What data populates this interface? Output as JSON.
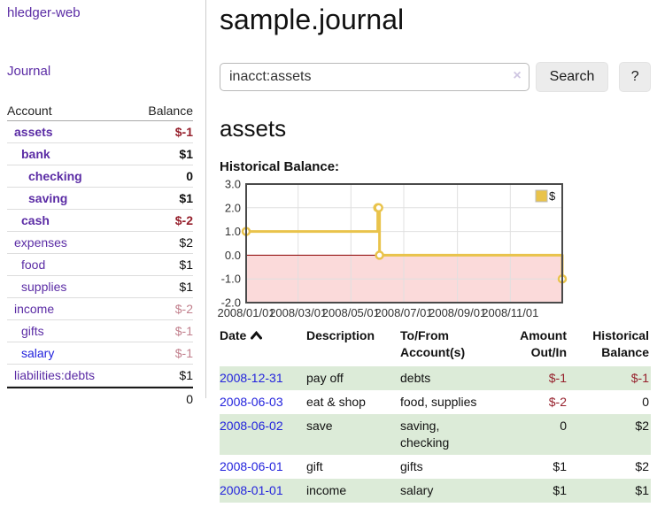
{
  "app": {
    "brand": "hledger-web"
  },
  "palette": {
    "purple_link": "#5b2ca5",
    "blue_link": "#2323dd",
    "negative": "#96202c",
    "negative_soft": "#c2808d",
    "row_stripe_green": "#dcebd8",
    "chart_line_gold": "#e9c34b",
    "chart_zero_line": "#8b0000",
    "chart_negative_region": "#fbdada"
  },
  "icons": {
    "sort": "chevron-up",
    "clear": "×"
  },
  "sidebar": {
    "journal_link": "Journal",
    "accounts": {
      "header": {
        "account": "Account",
        "balance": "Balance"
      },
      "rows": [
        {
          "name": "assets",
          "balance": "$-1"
        },
        {
          "name": "bank",
          "balance": "$1"
        },
        {
          "name": "checking",
          "balance": "0"
        },
        {
          "name": "saving",
          "balance": "$1"
        },
        {
          "name": "cash",
          "balance": "$-2"
        },
        {
          "name": "expenses",
          "balance": "$2"
        },
        {
          "name": "food",
          "balance": "$1"
        },
        {
          "name": "supplies",
          "balance": "$1"
        },
        {
          "name": "income",
          "balance": "$-2"
        },
        {
          "name": "gifts",
          "balance": "$-1"
        },
        {
          "name": "salary",
          "balance": "$-1"
        },
        {
          "name": "liabilities:debts",
          "balance": "$1"
        }
      ],
      "total": "0"
    }
  },
  "main": {
    "title": "sample.journal",
    "search": {
      "value": "inacct:assets",
      "button_label": "Search",
      "help_label": "?"
    },
    "account_heading": "assets",
    "chart_label": "Historical Balance:"
  },
  "chart_data": {
    "type": "line",
    "title": "Historical Balance",
    "step": true,
    "series": [
      {
        "name": "$",
        "color": "#e9c34b",
        "points": [
          [
            "2008/01/01",
            1
          ],
          [
            "2008/06/01",
            2
          ],
          [
            "2008/06/02",
            2
          ],
          [
            "2008/06/03",
            0
          ],
          [
            "2008/12/31",
            -1
          ]
        ]
      }
    ],
    "xlim": [
      "2008/01/01",
      "2008/12/31"
    ],
    "ylim": [
      -2,
      3
    ],
    "yticks": [
      3,
      2,
      1,
      0,
      -1,
      -2
    ],
    "xticks": [
      "2008/01/01",
      "2008/03/01",
      "2008/05/01",
      "2008/07/01",
      "2008/09/01",
      "2008/11/01"
    ],
    "grid": true,
    "legend_position": "top-right",
    "xlabel": "",
    "ylabel": "",
    "zero_line_color": "#8b0000",
    "negative_region_color": "#fbdada"
  },
  "register": {
    "headers": {
      "date": "Date",
      "description": "Description",
      "accounts": "To/From Account(s)",
      "amount": "Amount Out/In",
      "balance": "Historical Balance"
    },
    "rows": [
      {
        "date": "2008-12-31",
        "description": "pay off",
        "accounts": "debts",
        "amount": "$-1",
        "balance": "$-1"
      },
      {
        "date": "2008-06-03",
        "description": "eat & shop",
        "accounts": "food, supplies",
        "amount": "$-2",
        "balance": "0"
      },
      {
        "date": "2008-06-02",
        "description": "save",
        "accounts": "saving, checking",
        "amount": "0",
        "balance": "$2"
      },
      {
        "date": "2008-06-01",
        "description": "gift",
        "accounts": "gifts",
        "amount": "$1",
        "balance": "$2"
      },
      {
        "date": "2008-01-01",
        "description": "income",
        "accounts": "salary",
        "amount": "$1",
        "balance": "$1"
      }
    ]
  }
}
